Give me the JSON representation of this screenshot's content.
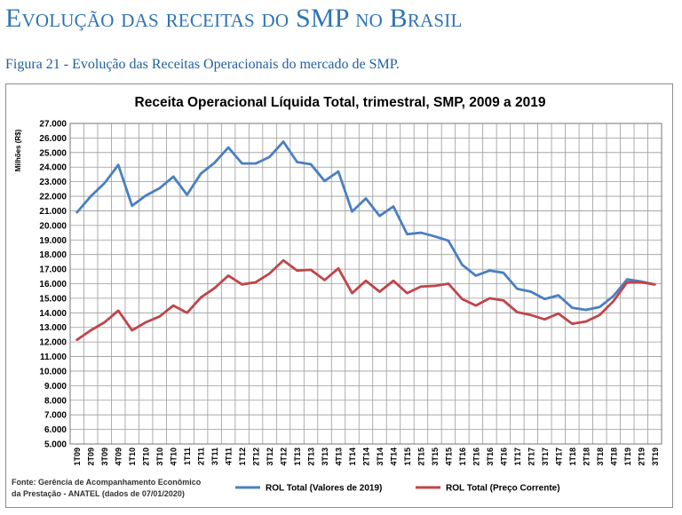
{
  "header": {
    "section_title": "Evolução das receitas do SMP no Brasil",
    "figure_caption": "Figura 21 - Evolução das Receitas Operacionais do mercado de SMP."
  },
  "source": {
    "line1": "Fonte: Gerência de Acompanhamento Econômico",
    "line2": "da Prestação - ANATEL (dados de 07/01/2020)"
  },
  "colors": {
    "series1": "#4a7fc1",
    "series2": "#c0454a",
    "grid": "#9a9a9a"
  },
  "chart_data": {
    "type": "line",
    "title": "Receita Operacional Líquida Total, trimestral, SMP, 2009 a 2019",
    "xlabel": "",
    "ylabel": "Milhões (R$)",
    "ylim": [
      5000,
      27000
    ],
    "ytick_step": 1000,
    "ytick_labels": [
      "5.000",
      "6.000",
      "7.000",
      "8.000",
      "9.000",
      "10.000",
      "11.000",
      "12.000",
      "13.000",
      "14.000",
      "15.000",
      "16.000",
      "17.000",
      "18.000",
      "19.000",
      "20.000",
      "21.000",
      "22.000",
      "23.000",
      "24.000",
      "25.000",
      "26.000",
      "27.000"
    ],
    "grid": true,
    "legend_position": "bottom",
    "categories": [
      "1T09",
      "2T09",
      "3T09",
      "4T09",
      "1T10",
      "2T10",
      "3T10",
      "4T10",
      "1T11",
      "2T11",
      "3T11",
      "4T11",
      "1T12",
      "2T12",
      "3T12",
      "4T12",
      "1T13",
      "2T13",
      "3T13",
      "4T13",
      "1T14",
      "2T14",
      "3T14",
      "4T14",
      "1T15",
      "2T15",
      "3T15",
      "4T15",
      "1T16",
      "2T16",
      "3T16",
      "4T16",
      "1T17",
      "2T17",
      "3T17",
      "4T17",
      "1T18",
      "2T18",
      "3T18",
      "4T18",
      "1T19",
      "2T19",
      "3T19"
    ],
    "series": [
      {
        "name": "ROL Total (Valores de 2019)",
        "values": [
          20900,
          22000,
          22900,
          24150,
          21350,
          22050,
          22550,
          23350,
          22100,
          23550,
          24300,
          25350,
          24250,
          24250,
          24700,
          25750,
          24350,
          24200,
          23050,
          23700,
          20950,
          21850,
          20650,
          21300,
          19400,
          19500,
          19250,
          18950,
          17300,
          16550,
          16900,
          16750,
          15650,
          15450,
          14950,
          15200,
          14350,
          14200,
          14400,
          15150,
          16300,
          16150,
          15950
        ]
      },
      {
        "name": "ROL Total (Preço Corrente)",
        "values": [
          12150,
          12800,
          13350,
          14150,
          12800,
          13350,
          13750,
          14500,
          14000,
          15050,
          15700,
          16550,
          15950,
          16100,
          16700,
          17600,
          16900,
          16950,
          16250,
          17050,
          15350,
          16200,
          15450,
          16200,
          15350,
          15800,
          15850,
          16000,
          14950,
          14500,
          15000,
          14850,
          14050,
          13850,
          13550,
          13950,
          13250,
          13400,
          13850,
          14800,
          16100,
          16100,
          15950
        ]
      }
    ]
  }
}
